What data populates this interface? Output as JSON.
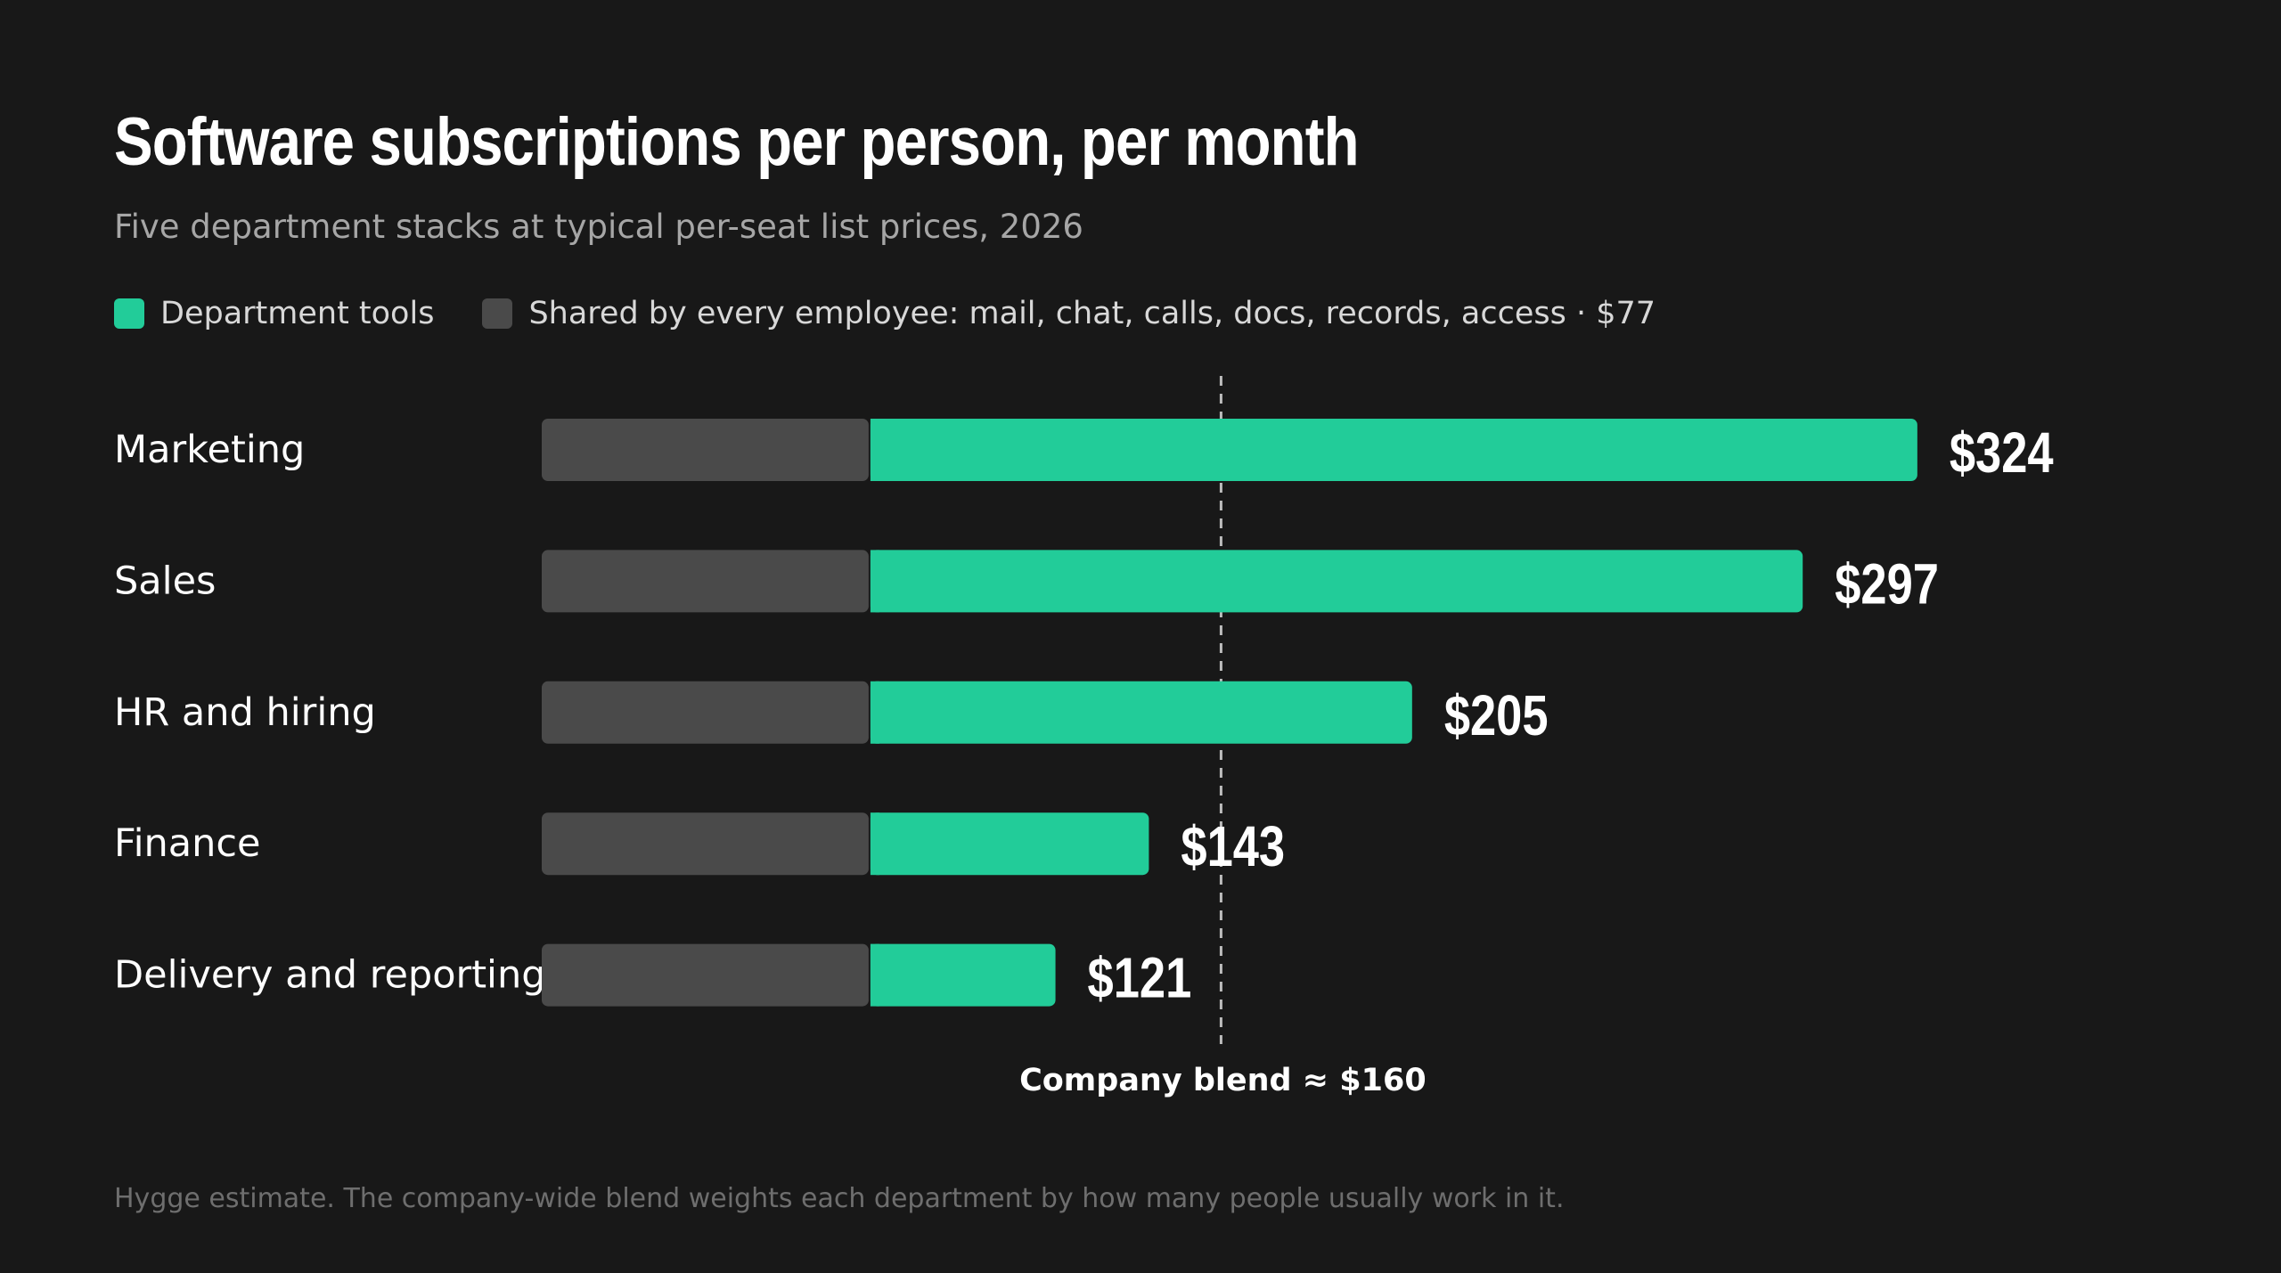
{
  "header": {
    "title": "Software subscriptions per person, per month",
    "subtitle": "Five department stacks at typical per-seat list prices, 2026"
  },
  "legend": {
    "items": [
      {
        "label": "Department tools",
        "color": "#22cc99"
      },
      {
        "label": "Shared by every employee: mail, chat, calls, docs, records, access · $77",
        "color": "#4a4a4a"
      }
    ]
  },
  "footnote": "Hygge estimate. The company-wide blend weights each department by how many people usually work in it.",
  "chart_data": {
    "type": "bar",
    "orientation": "horizontal",
    "stacked": true,
    "categories": [
      "Marketing",
      "Sales",
      "HR and hiring",
      "Finance",
      "Delivery and reporting"
    ],
    "series": [
      {
        "name": "Shared by every employee: mail, chat, calls, docs, records, access",
        "values": [
          77,
          77,
          77,
          77,
          77
        ],
        "color": "#4a4a4a"
      },
      {
        "name": "Department tools",
        "values": [
          247,
          220,
          128,
          66,
          44
        ],
        "color": "#22cc99"
      }
    ],
    "totals": [
      324,
      297,
      205,
      143,
      121
    ],
    "total_labels": [
      "$324",
      "$297",
      "$205",
      "$143",
      "$121"
    ],
    "reference_line": {
      "value": 160,
      "label": "Company blend ≈ $160",
      "style": "dashed"
    },
    "xlim": [
      0,
      324
    ],
    "grid": false,
    "legend_placement": "top-left"
  }
}
